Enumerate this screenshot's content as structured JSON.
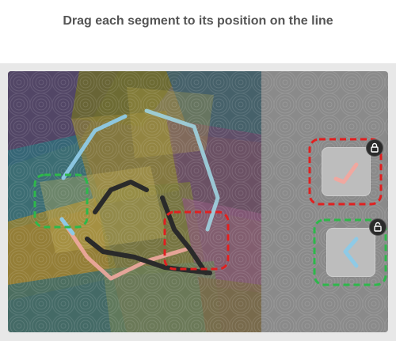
{
  "instruction": "Drag each segment to its position on the line",
  "colors": {
    "page_bg": "#ffffff",
    "frame_bg": "#e8e8e8",
    "tray_bg": "#8a8a8a",
    "slot_red": "#e02020",
    "slot_green": "#2db84a",
    "segment_pink": "#f0a8a0",
    "segment_blue": "#8ecae6",
    "segment_dark": "#2a2a2a"
  },
  "target_slots": [
    {
      "id": "slot-left",
      "state": "green"
    },
    {
      "id": "slot-right",
      "state": "red"
    }
  ],
  "pieces": [
    {
      "id": "piece-1",
      "shape": "pink-check",
      "status": "red",
      "lock_icon": "lock-icon"
    },
    {
      "id": "piece-2",
      "shape": "blue-chevron",
      "status": "green",
      "lock_icon": "unlock-icon"
    }
  ]
}
